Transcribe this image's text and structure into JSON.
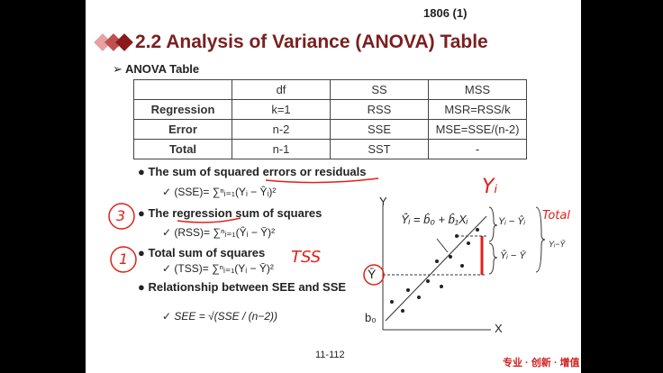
{
  "header": {
    "page_code": "1806 (1)",
    "title": "2.2 Analysis of Variance (ANOVA) Table",
    "section": "ANOVA Table"
  },
  "table": {
    "header": [
      "df",
      "SS",
      "MSS"
    ],
    "rows": [
      [
        "Regression",
        "k=1",
        "RSS",
        "MSR=RSS/k"
      ],
      [
        "Error",
        "n-2",
        "SSE",
        "MSE=SSE/(n-2)"
      ],
      [
        "Total",
        "n-1",
        "SST",
        "-"
      ]
    ]
  },
  "bullets": [
    {
      "text": "The sum of squared errors or residuals",
      "formula": "(SSE)= ∑ⁿᵢ₌₁(Yᵢ − Ŷᵢ)²"
    },
    {
      "text": "The regression sum of squares",
      "formula": "(RSS)= ∑ⁿᵢ₌₁(Ŷᵢ − Ȳ)²"
    },
    {
      "text": "Total sum of squares",
      "formula": "(TSS)= ∑ⁿᵢ₌₁(Yᵢ − Ȳ)²"
    },
    {
      "text": "Relationship between SEE and SSE",
      "formula": "SEE = √(SSE / (n−2))"
    }
  ],
  "diagram": {
    "y_axis": "Y",
    "x_axis": "X",
    "intercept": "b₀",
    "mean": "Ȳ",
    "equation": "Ŷᵢ = b̂₀ + b̂₁Xᵢ",
    "residual": "Yᵢ − Ŷᵢ",
    "explained": "Ŷᵢ − Ȳ",
    "total": "Yᵢ−Ȳ"
  },
  "annotations": {
    "yi": "Yᵢ",
    "total": "Total",
    "tss": "TSS",
    "circle_3": "3",
    "circle_1": "1"
  },
  "footer": {
    "page": "11-112",
    "brand": "专业 · 创新 · 增值"
  }
}
